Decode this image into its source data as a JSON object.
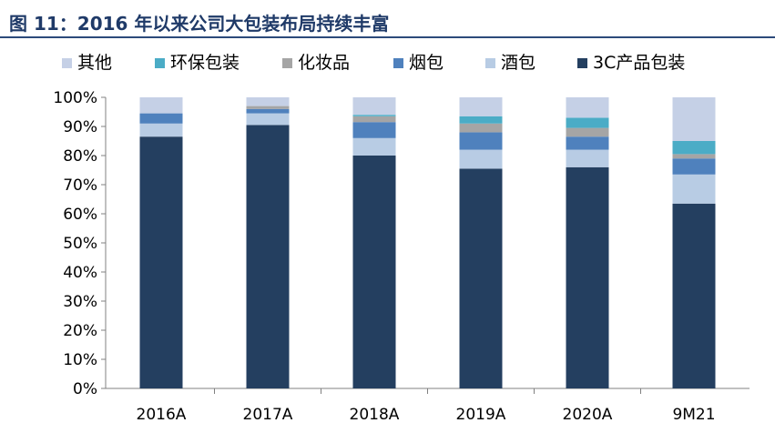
{
  "header": {
    "title": "图 11：2016 年以来公司大包装布局持续丰富"
  },
  "chart_data": {
    "type": "bar",
    "stacked": true,
    "categories": [
      "2016A",
      "2017A",
      "2018A",
      "2019A",
      "2020A",
      "9M21"
    ],
    "yticks": [
      "0%",
      "10%",
      "20%",
      "30%",
      "40%",
      "50%",
      "60%",
      "70%",
      "80%",
      "90%",
      "100%"
    ],
    "ylim": [
      0,
      100
    ],
    "grid": false,
    "legend_position": "top",
    "legend_order": [
      "其他",
      "环保包装",
      "化妆品",
      "烟包",
      "酒包",
      "3C产品包装"
    ],
    "series": [
      {
        "name": "3C产品包装",
        "color": "#243f60",
        "values": [
          86.5,
          90.5,
          80,
          75.5,
          76,
          63.5
        ]
      },
      {
        "name": "酒包",
        "color": "#b8cce4",
        "values": [
          4.5,
          4,
          6,
          6.5,
          6,
          10
        ]
      },
      {
        "name": "烟包",
        "color": "#4f81bd",
        "values": [
          3.5,
          1.5,
          5.5,
          6,
          4.5,
          5.5
        ]
      },
      {
        "name": "化妆品",
        "color": "#a5a5a5",
        "values": [
          0,
          1,
          2,
          3,
          3,
          1.5
        ]
      },
      {
        "name": "环保包装",
        "color": "#4bacc6",
        "values": [
          0,
          0,
          0.5,
          2.5,
          3.5,
          4.5
        ]
      },
      {
        "name": "其他",
        "color": "#c5d0e6",
        "values": [
          5.5,
          3,
          6,
          6.5,
          7,
          15
        ]
      }
    ]
  }
}
